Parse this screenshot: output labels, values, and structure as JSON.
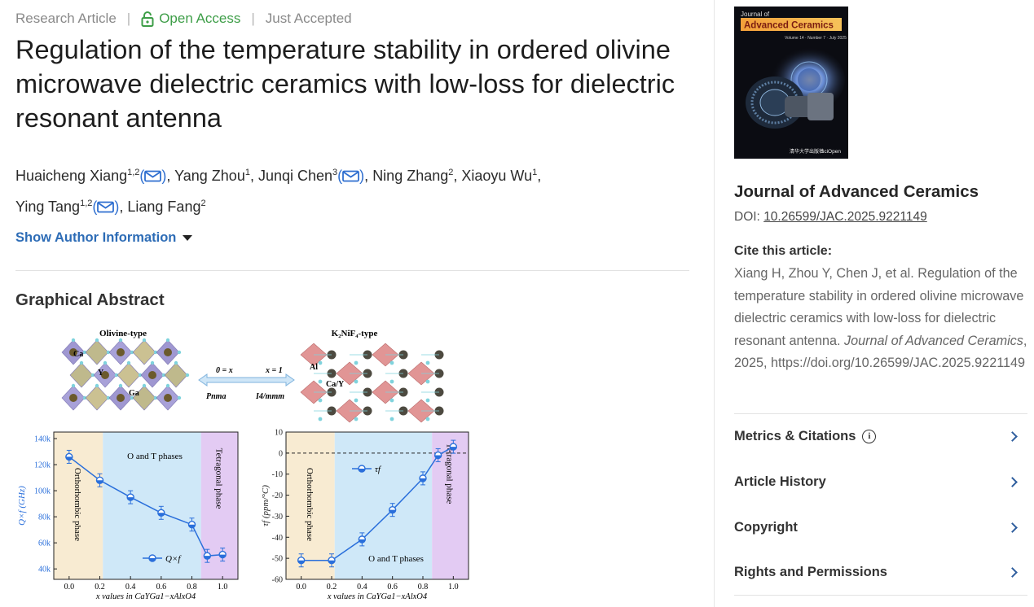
{
  "article": {
    "type": "Research Article",
    "access": "Open Access",
    "status": "Just Accepted",
    "title": "Regulation of the temperature stability in ordered olivine microwave dielectric ceramics with low-loss for dielectric resonant antenna",
    "authors": [
      {
        "name": "Huaicheng Xiang",
        "sup": "1,2",
        "email": true
      },
      {
        "name": "Yang Zhou",
        "sup": "1",
        "email": false
      },
      {
        "name": "Junqi Chen",
        "sup": "3",
        "email": true
      },
      {
        "name": "Ning Zhang",
        "sup": "2",
        "email": false
      },
      {
        "name": "Xiaoyu Wu",
        "sup": "1",
        "email": false
      },
      {
        "name": "Ying Tang",
        "sup": "1,2",
        "email": true
      },
      {
        "name": "Liang Fang",
        "sup": "2",
        "email": false
      }
    ],
    "show_author_label": "Show Author Information",
    "graphical_abstract_heading": "Graphical Abstract"
  },
  "figure": {
    "structure_left_title": "Olivine-type",
    "structure_right_title": "K₂NiF₄-type",
    "atom_labels": {
      "ca": "Ca",
      "y": "Y",
      "ga": "Ga",
      "al": "Al",
      "cay": "Ca/Y"
    },
    "transition": {
      "left_eq": "0 = x",
      "right_eq": "x = 1",
      "left_group": "Pnma",
      "right_group": "I4/mmm"
    }
  },
  "chart_data": [
    {
      "type": "line",
      "series": [
        {
          "name": "Q×f",
          "color": "#2a6fdb",
          "x": [
            0.0,
            0.2,
            0.4,
            0.6,
            0.8,
            0.9,
            1.0
          ],
          "y": [
            126000,
            108000,
            95000,
            83000,
            74000,
            50000,
            51000
          ]
        }
      ],
      "xlabel": "x values in CaYGa1−xAlxO4",
      "ylabel": "Q×f (GHz)",
      "xlim": [
        -0.1,
        1.1
      ],
      "ylim": [
        32000,
        145000
      ],
      "xticks": [
        "0.0",
        "0.2",
        "0.4",
        "0.6",
        "0.8",
        "1.0"
      ],
      "yticks": [
        "40k",
        "60k",
        "80k",
        "100k",
        "120k",
        "140k"
      ],
      "regions": [
        {
          "label": "Orthorhombic phase",
          "from": -0.1,
          "to": 0.22,
          "color": "#f8ebd2"
        },
        {
          "label": "O and T phases",
          "from": 0.22,
          "to": 0.86,
          "color": "#cfe8f8"
        },
        {
          "label": "Tetragonal phase",
          "from": 0.86,
          "to": 1.1,
          "color": "#e3cbf3"
        }
      ],
      "legend": "Q×f"
    },
    {
      "type": "line",
      "series": [
        {
          "name": "τf",
          "color": "#2a6fdb",
          "x": [
            0.0,
            0.2,
            0.4,
            0.6,
            0.8,
            0.9,
            1.0
          ],
          "y": [
            -51,
            -51,
            -41,
            -27,
            -12,
            -1,
            3
          ]
        }
      ],
      "xlabel": "x values in CaYGa1−xAlxO4",
      "ylabel": "τf (ppm/°C)",
      "xlim": [
        -0.1,
        1.1
      ],
      "ylim": [
        -60,
        10
      ],
      "xticks": [
        "0.0",
        "0.2",
        "0.4",
        "0.6",
        "0.8",
        "1.0"
      ],
      "yticks": [
        "-60",
        "-50",
        "-40",
        "-30",
        "-20",
        "-10",
        "0",
        "10"
      ],
      "regions": [
        {
          "label": "Orthorhombic phase",
          "from": -0.1,
          "to": 0.22,
          "color": "#f8ebd2"
        },
        {
          "label": "O and T phases",
          "from": 0.22,
          "to": 0.86,
          "color": "#cfe8f8"
        },
        {
          "label": "Tetragonal phase",
          "from": 0.86,
          "to": 1.1,
          "color": "#e3cbf3"
        }
      ],
      "legend": "τf",
      "reference_line": 0
    }
  ],
  "sidebar": {
    "cover": {
      "journal_small": "Journal of",
      "journal_big": "Advanced Ceramics",
      "volume_line": "Volume 14 · Number 7 · July 2025",
      "publisher_a": "清华大学出版社",
      "publisher_b": "SciOpen"
    },
    "journal_name": "Journal of Advanced Ceramics",
    "doi_label": "DOI:",
    "doi_value": "10.26599/JAC.2025.9221149",
    "cite_title": "Cite this article:",
    "cite_text_main": "Xiang H, Zhou Y, Chen J, et al. Regulation of the temperature stability in ordered olivine microwave dielectric ceramics with low-loss for dielectric resonant antenna. ",
    "cite_journal": "Journal of Advanced Ceramics",
    "cite_tail": ", 2025, https://doi.org/10.26599/JAC.2025.9221149",
    "sections": [
      {
        "label": "Metrics & Citations",
        "info": true
      },
      {
        "label": "Article History",
        "info": false
      },
      {
        "label": "Copyright",
        "info": false
      },
      {
        "label": "Rights and Permissions",
        "info": false
      }
    ]
  }
}
